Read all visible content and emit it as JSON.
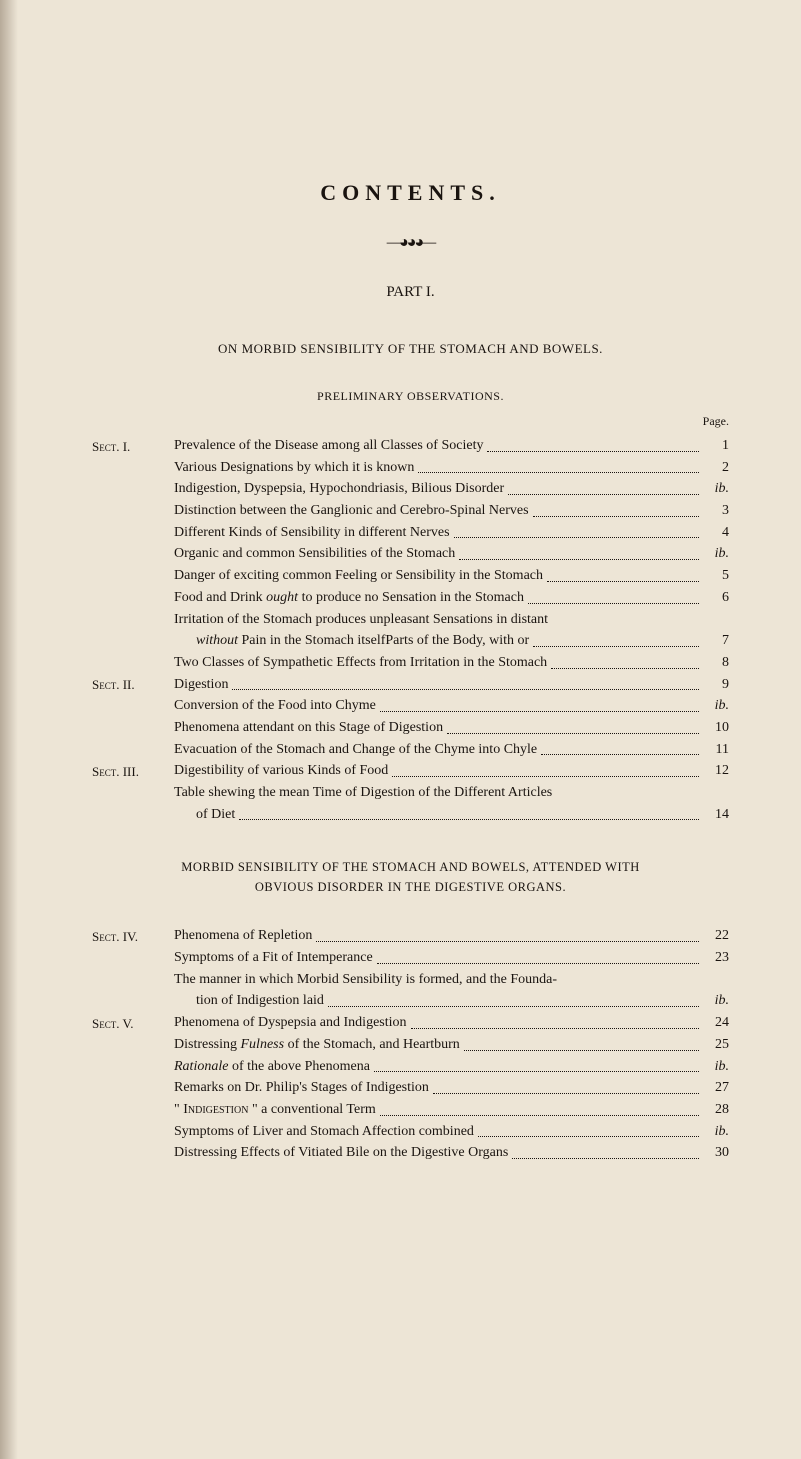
{
  "title": "CONTENTS.",
  "ornament": "—◕◕◕—",
  "part": "PART I.",
  "chapter_title": "ON MORBID SENSIBILITY OF THE STOMACH AND BOWELS.",
  "prelim_heading": "PRELIMINARY OBSERVATIONS.",
  "page_label": "Page.",
  "sects": {
    "s1": "Sect. I.",
    "s2": "Sect. II.",
    "s3": "Sect. III.",
    "s4": "Sect. IV.",
    "s5": "Sect. V."
  },
  "entries_a": [
    {
      "sect": "s1",
      "text": "Prevalence of the Disease among all Classes of Society",
      "page": "1"
    },
    {
      "text": "Various Designations by which it is known",
      "page": "2"
    },
    {
      "text": "Indigestion, Dyspepsia, Hypochondriasis, Bilious Disorder",
      "page": "ib.",
      "italic": true
    },
    {
      "text": "Distinction between the Ganglionic and Cerebro-Spinal Nerves",
      "page": "3"
    },
    {
      "text": "Different Kinds of Sensibility in different Nerves",
      "page": "4"
    },
    {
      "text": "Organic and common Sensibilities of the Stomach",
      "page": "ib.",
      "italic": true
    },
    {
      "text": "Danger of exciting common Feeling or Sensibility in the Stomach",
      "page": "5"
    },
    {
      "text_pre": "Food and Drink ",
      "text_em": "ought",
      "text_post": " to produce no Sensation in the Stomach",
      "page": "6"
    },
    {
      "text": "Irritation of the Stomach produces unpleasant Sensations in distant",
      "wrap": true
    },
    {
      "text": "Parts of the Body, with or ",
      "text_em": "without",
      "text_post": " Pain in the Stomach itself",
      "indent": true,
      "page": "7"
    },
    {
      "text": "Two Classes of Sympathetic Effects from Irritation in the Stomach",
      "page": "8"
    },
    {
      "sect": "s2",
      "text": "Digestion",
      "page": "9"
    },
    {
      "text": "Conversion of the Food into Chyme",
      "page": "ib.",
      "italic": true
    },
    {
      "text": "Phenomena attendant on this Stage of Digestion",
      "page": "10"
    },
    {
      "text": "Evacuation of the Stomach and Change of the Chyme into Chyle",
      "page": "11"
    },
    {
      "sect": "s3",
      "text": "Digestibility of various Kinds of Food",
      "page": "12"
    },
    {
      "text": "Table shewing the mean Time of Digestion of the Different Articles",
      "wrap": true
    },
    {
      "text": "of Diet",
      "indent": true,
      "page": "14"
    }
  ],
  "sub_chapter_title_1": "MORBID SENSIBILITY OF THE STOMACH AND BOWELS, ATTENDED WITH",
  "sub_chapter_title_2": "OBVIOUS DISORDER IN THE DIGESTIVE ORGANS.",
  "entries_b": [
    {
      "sect": "s4",
      "text": "Phenomena of Repletion",
      "page": "22"
    },
    {
      "text": "Symptoms of a Fit of Intemperance",
      "page": "23"
    },
    {
      "text": "The manner in which Morbid Sensibility is formed, and the Founda-",
      "wrap": true
    },
    {
      "text": "tion of Indigestion laid",
      "indent": true,
      "page": "ib.",
      "italic": true
    },
    {
      "sect": "s5",
      "text": "Phenomena of Dyspepsia and Indigestion",
      "page": "24"
    },
    {
      "text_pre": "Distressing ",
      "text_em": "Fulness",
      "text_post": " of the Stomach, and Heartburn",
      "page": "25"
    },
    {
      "text_em": "Rationale",
      "text_post": " of the above Phenomena",
      "page": "ib.",
      "italic": true
    },
    {
      "text": "Remarks on Dr. Philip's Stages of Indigestion",
      "page": "27"
    },
    {
      "text_pre": "\" ",
      "text_sc": "Indigestion",
      "text_post": " \" a conventional Term",
      "page": "28"
    },
    {
      "text": "Symptoms of Liver and Stomach Affection combined",
      "page": "ib.",
      "italic": true
    },
    {
      "text": "Distressing Effects of Vitiated Bile on the Digestive Organs",
      "page": "30"
    }
  ]
}
